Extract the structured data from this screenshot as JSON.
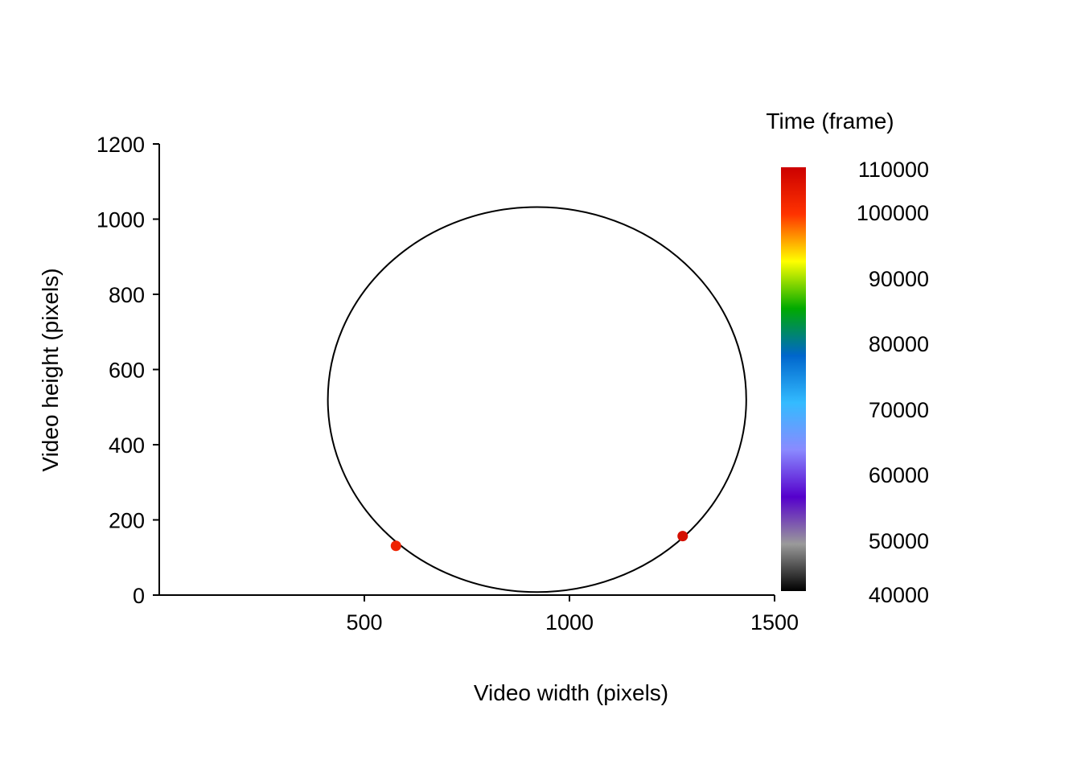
{
  "chart_data": {
    "type": "scatter",
    "xlabel": "Video width (pixels)",
    "ylabel": "Video height (pixels)",
    "xlim": [
      0,
      1500
    ],
    "ylim": [
      0,
      1200
    ],
    "x_ticks": [
      500,
      1000,
      1500
    ],
    "y_ticks": [
      0,
      200,
      400,
      600,
      800,
      1000,
      1200
    ],
    "grid": false,
    "arena_circle": {
      "center_x": 921,
      "center_y": 520,
      "radius_x": 510,
      "radius_y": 512
    },
    "points": [
      {
        "x": 577,
        "y": 131,
        "time": 101000,
        "color": "#ee2200"
      },
      {
        "x": 1276,
        "y": 157,
        "time": 107500,
        "color": "#d40f00"
      }
    ],
    "colorbar": {
      "title": "Time (frame)",
      "min": 40000,
      "max": 110000,
      "tick_values": [
        110000,
        100000,
        90000,
        80000,
        70000,
        60000,
        50000,
        40000
      ],
      "tick_labels": [
        "110000",
        "100000",
        "90000",
        "80000",
        "70000",
        "60000",
        "50000",
        "40000"
      ],
      "colors": [
        "#000000",
        "#9a9a9a",
        "#5500cc",
        "#8a8aff",
        "#33bbff",
        "#0066cc",
        "#00aa00",
        "#ffff00",
        "#ff3300",
        "#cc0000"
      ]
    }
  }
}
